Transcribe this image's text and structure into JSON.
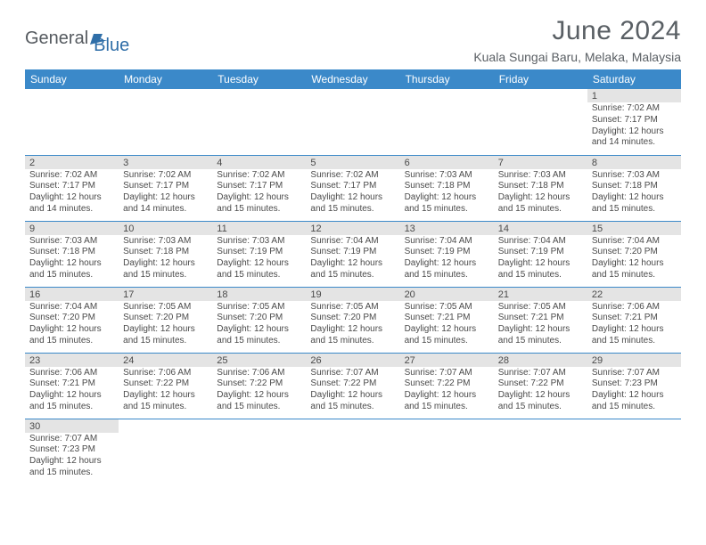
{
  "logo": {
    "word1": "General",
    "word2": "Blue"
  },
  "title": "June 2024",
  "location": "Kuala Sungai Baru, Melaka, Malaysia",
  "colors": {
    "header_bg": "#3b89c9",
    "header_text": "#ffffff",
    "daynum_bg": "#e4e4e4",
    "cell_border": "#3b89c9",
    "text": "#4a4a4a",
    "logo_gray": "#555a5f",
    "logo_blue": "#2f6ea8"
  },
  "day_headers": [
    "Sunday",
    "Monday",
    "Tuesday",
    "Wednesday",
    "Thursday",
    "Friday",
    "Saturday"
  ],
  "weeks": [
    [
      null,
      null,
      null,
      null,
      null,
      null,
      {
        "n": "1",
        "sr": "Sunrise: 7:02 AM",
        "ss": "Sunset: 7:17 PM",
        "d1": "Daylight: 12 hours",
        "d2": "and 14 minutes."
      }
    ],
    [
      {
        "n": "2",
        "sr": "Sunrise: 7:02 AM",
        "ss": "Sunset: 7:17 PM",
        "d1": "Daylight: 12 hours",
        "d2": "and 14 minutes."
      },
      {
        "n": "3",
        "sr": "Sunrise: 7:02 AM",
        "ss": "Sunset: 7:17 PM",
        "d1": "Daylight: 12 hours",
        "d2": "and 14 minutes."
      },
      {
        "n": "4",
        "sr": "Sunrise: 7:02 AM",
        "ss": "Sunset: 7:17 PM",
        "d1": "Daylight: 12 hours",
        "d2": "and 15 minutes."
      },
      {
        "n": "5",
        "sr": "Sunrise: 7:02 AM",
        "ss": "Sunset: 7:17 PM",
        "d1": "Daylight: 12 hours",
        "d2": "and 15 minutes."
      },
      {
        "n": "6",
        "sr": "Sunrise: 7:03 AM",
        "ss": "Sunset: 7:18 PM",
        "d1": "Daylight: 12 hours",
        "d2": "and 15 minutes."
      },
      {
        "n": "7",
        "sr": "Sunrise: 7:03 AM",
        "ss": "Sunset: 7:18 PM",
        "d1": "Daylight: 12 hours",
        "d2": "and 15 minutes."
      },
      {
        "n": "8",
        "sr": "Sunrise: 7:03 AM",
        "ss": "Sunset: 7:18 PM",
        "d1": "Daylight: 12 hours",
        "d2": "and 15 minutes."
      }
    ],
    [
      {
        "n": "9",
        "sr": "Sunrise: 7:03 AM",
        "ss": "Sunset: 7:18 PM",
        "d1": "Daylight: 12 hours",
        "d2": "and 15 minutes."
      },
      {
        "n": "10",
        "sr": "Sunrise: 7:03 AM",
        "ss": "Sunset: 7:18 PM",
        "d1": "Daylight: 12 hours",
        "d2": "and 15 minutes."
      },
      {
        "n": "11",
        "sr": "Sunrise: 7:03 AM",
        "ss": "Sunset: 7:19 PM",
        "d1": "Daylight: 12 hours",
        "d2": "and 15 minutes."
      },
      {
        "n": "12",
        "sr": "Sunrise: 7:04 AM",
        "ss": "Sunset: 7:19 PM",
        "d1": "Daylight: 12 hours",
        "d2": "and 15 minutes."
      },
      {
        "n": "13",
        "sr": "Sunrise: 7:04 AM",
        "ss": "Sunset: 7:19 PM",
        "d1": "Daylight: 12 hours",
        "d2": "and 15 minutes."
      },
      {
        "n": "14",
        "sr": "Sunrise: 7:04 AM",
        "ss": "Sunset: 7:19 PM",
        "d1": "Daylight: 12 hours",
        "d2": "and 15 minutes."
      },
      {
        "n": "15",
        "sr": "Sunrise: 7:04 AM",
        "ss": "Sunset: 7:20 PM",
        "d1": "Daylight: 12 hours",
        "d2": "and 15 minutes."
      }
    ],
    [
      {
        "n": "16",
        "sr": "Sunrise: 7:04 AM",
        "ss": "Sunset: 7:20 PM",
        "d1": "Daylight: 12 hours",
        "d2": "and 15 minutes."
      },
      {
        "n": "17",
        "sr": "Sunrise: 7:05 AM",
        "ss": "Sunset: 7:20 PM",
        "d1": "Daylight: 12 hours",
        "d2": "and 15 minutes."
      },
      {
        "n": "18",
        "sr": "Sunrise: 7:05 AM",
        "ss": "Sunset: 7:20 PM",
        "d1": "Daylight: 12 hours",
        "d2": "and 15 minutes."
      },
      {
        "n": "19",
        "sr": "Sunrise: 7:05 AM",
        "ss": "Sunset: 7:20 PM",
        "d1": "Daylight: 12 hours",
        "d2": "and 15 minutes."
      },
      {
        "n": "20",
        "sr": "Sunrise: 7:05 AM",
        "ss": "Sunset: 7:21 PM",
        "d1": "Daylight: 12 hours",
        "d2": "and 15 minutes."
      },
      {
        "n": "21",
        "sr": "Sunrise: 7:05 AM",
        "ss": "Sunset: 7:21 PM",
        "d1": "Daylight: 12 hours",
        "d2": "and 15 minutes."
      },
      {
        "n": "22",
        "sr": "Sunrise: 7:06 AM",
        "ss": "Sunset: 7:21 PM",
        "d1": "Daylight: 12 hours",
        "d2": "and 15 minutes."
      }
    ],
    [
      {
        "n": "23",
        "sr": "Sunrise: 7:06 AM",
        "ss": "Sunset: 7:21 PM",
        "d1": "Daylight: 12 hours",
        "d2": "and 15 minutes."
      },
      {
        "n": "24",
        "sr": "Sunrise: 7:06 AM",
        "ss": "Sunset: 7:22 PM",
        "d1": "Daylight: 12 hours",
        "d2": "and 15 minutes."
      },
      {
        "n": "25",
        "sr": "Sunrise: 7:06 AM",
        "ss": "Sunset: 7:22 PM",
        "d1": "Daylight: 12 hours",
        "d2": "and 15 minutes."
      },
      {
        "n": "26",
        "sr": "Sunrise: 7:07 AM",
        "ss": "Sunset: 7:22 PM",
        "d1": "Daylight: 12 hours",
        "d2": "and 15 minutes."
      },
      {
        "n": "27",
        "sr": "Sunrise: 7:07 AM",
        "ss": "Sunset: 7:22 PM",
        "d1": "Daylight: 12 hours",
        "d2": "and 15 minutes."
      },
      {
        "n": "28",
        "sr": "Sunrise: 7:07 AM",
        "ss": "Sunset: 7:22 PM",
        "d1": "Daylight: 12 hours",
        "d2": "and 15 minutes."
      },
      {
        "n": "29",
        "sr": "Sunrise: 7:07 AM",
        "ss": "Sunset: 7:23 PM",
        "d1": "Daylight: 12 hours",
        "d2": "and 15 minutes."
      }
    ],
    [
      {
        "n": "30",
        "sr": "Sunrise: 7:07 AM",
        "ss": "Sunset: 7:23 PM",
        "d1": "Daylight: 12 hours",
        "d2": "and 15 minutes."
      },
      null,
      null,
      null,
      null,
      null,
      null
    ]
  ]
}
